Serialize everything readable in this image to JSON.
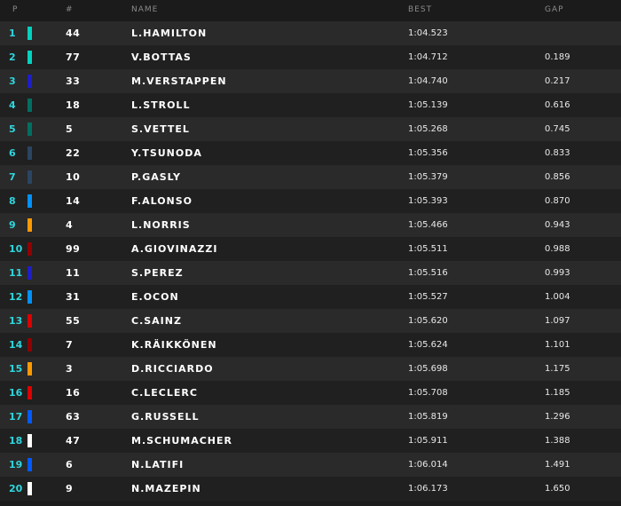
{
  "table": {
    "columns": [
      "P",
      "#",
      "NAME",
      "BEST",
      "GAP"
    ],
    "rows": [
      {
        "pos": "1",
        "num": "44",
        "name": "L.HAMILTON",
        "best": "1:04.523",
        "color": "#00d2be"
      },
      {
        "pos": "2",
        "num": "77",
        "name": "V.BOTTAS",
        "best": "1:04.712",
        "gap": "0.189",
        "color": "#00d2be"
      },
      {
        "pos": "3",
        "num": "33",
        "name": "M.VERSTAPPEN",
        "best": "1:04.740",
        "gap": "0.217",
        "color": "#1e1ec8"
      },
      {
        "pos": "4",
        "num": "18",
        "name": "L.STROLL",
        "best": "1:05.139",
        "gap": "0.616",
        "color": "#006f62"
      },
      {
        "pos": "5",
        "num": "5",
        "name": "S.VETTEL",
        "best": "1:05.268",
        "gap": "0.745",
        "color": "#006f62"
      },
      {
        "pos": "6",
        "num": "22",
        "name": "Y.TSUNODA",
        "best": "1:05.356",
        "gap": "0.833",
        "color": "#2b4562"
      },
      {
        "pos": "7",
        "num": "10",
        "name": "P.GASLY",
        "best": "1:05.379",
        "gap": "0.856",
        "color": "#2b4562"
      },
      {
        "pos": "8",
        "num": "14",
        "name": "F.ALONSO",
        "best": "1:05.393",
        "gap": "0.870",
        "color": "#0090ff"
      },
      {
        "pos": "9",
        "num": "4",
        "name": "L.NORRIS",
        "best": "1:05.466",
        "gap": "0.943",
        "color": "#ff9800"
      },
      {
        "pos": "10",
        "num": "99",
        "name": "A.GIOVINAZZI",
        "best": "1:05.511",
        "gap": "0.988",
        "color": "#900000"
      },
      {
        "pos": "11",
        "num": "11",
        "name": "S.PEREZ",
        "best": "1:05.516",
        "gap": "0.993",
        "color": "#1e1ec8"
      },
      {
        "pos": "12",
        "num": "31",
        "name": "E.OCON",
        "best": "1:05.527",
        "gap": "1.004",
        "color": "#0090ff"
      },
      {
        "pos": "13",
        "num": "55",
        "name": "C.SAINZ",
        "best": "1:05.620",
        "gap": "1.097",
        "color": "#dc0000"
      },
      {
        "pos": "14",
        "num": "7",
        "name": "K.RÄIKKÖNEN",
        "best": "1:05.624",
        "gap": "1.101",
        "color": "#900000"
      },
      {
        "pos": "15",
        "num": "3",
        "name": "D.RICCIARDO",
        "best": "1:05.698",
        "gap": "1.175",
        "color": "#ff9800"
      },
      {
        "pos": "16",
        "num": "16",
        "name": "C.LECLERC",
        "best": "1:05.708",
        "gap": "1.185",
        "color": "#dc0000"
      },
      {
        "pos": "17",
        "num": "63",
        "name": "G.RUSSELL",
        "best": "1:05.819",
        "gap": "1.296",
        "color": "#005aff"
      },
      {
        "pos": "18",
        "num": "47",
        "name": "M.SCHUMACHER",
        "best": "1:05.911",
        "gap": "1.388",
        "color": "#ffffff"
      },
      {
        "pos": "19",
        "num": "6",
        "name": "N.LATIFI",
        "best": "1:06.014",
        "gap": "1.491",
        "color": "#005aff"
      },
      {
        "pos": "20",
        "num": "9",
        "name": "N.MAZEPIN",
        "best": "1:06.173",
        "gap": "1.650",
        "color": "#ffffff"
      }
    ]
  }
}
